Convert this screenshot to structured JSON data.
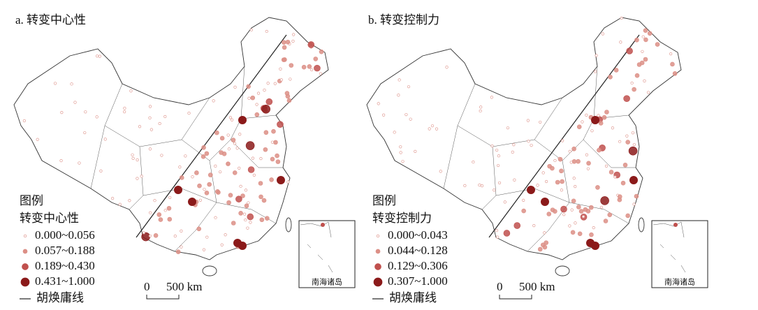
{
  "panels": [
    {
      "title": "a. 转变中心性",
      "legend": {
        "title": "图例",
        "subtitle": "转变中心性",
        "items": [
          "0.000~0.056",
          "0.057~0.188",
          "0.189~0.430",
          "0.431~1.000"
        ],
        "line": "胡焕庸线"
      },
      "scale": {
        "zero": "0",
        "distance": "500 km"
      },
      "inset": "南海诸岛"
    },
    {
      "title": "b. 转变控制力",
      "legend": {
        "title": "图例",
        "subtitle": "转变控制力",
        "items": [
          "0.000~0.043",
          "0.044~0.128",
          "0.129~0.306",
          "0.307~1.000"
        ],
        "line": "胡焕庸线"
      },
      "scale": {
        "zero": "0",
        "distance": "500 km"
      },
      "inset": "南海诸岛"
    }
  ]
}
